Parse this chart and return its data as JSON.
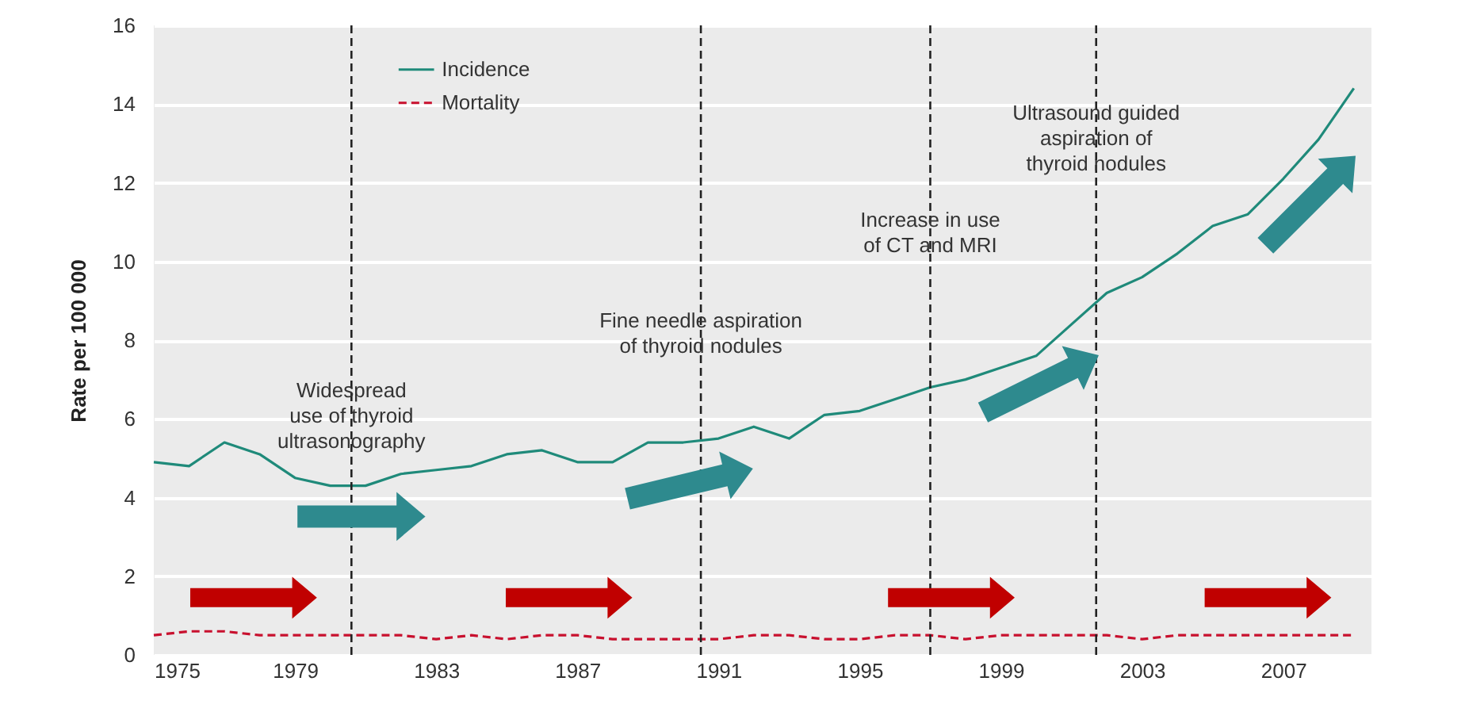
{
  "chart_data": {
    "type": "line",
    "ylabel": "Rate per 100 000",
    "x": [
      1975,
      1976,
      1977,
      1978,
      1979,
      1980,
      1981,
      1982,
      1983,
      1984,
      1985,
      1986,
      1987,
      1988,
      1989,
      1990,
      1991,
      1992,
      1993,
      1994,
      1995,
      1996,
      1997,
      1998,
      1999,
      2000,
      2001,
      2002,
      2003,
      2004,
      2005,
      2006,
      2007,
      2008,
      2009
    ],
    "series": [
      {
        "name": "Incidence",
        "color": "#1f8a7a",
        "line_style": "solid",
        "values": [
          4.9,
          4.8,
          5.4,
          5.1,
          4.5,
          4.3,
          4.3,
          4.6,
          4.7,
          4.8,
          5.1,
          5.2,
          4.9,
          4.9,
          5.4,
          5.4,
          5.5,
          5.8,
          5.5,
          6.1,
          6.2,
          6.5,
          6.8,
          7.0,
          7.3,
          7.6,
          8.4,
          9.2,
          9.6,
          10.2,
          10.9,
          11.2,
          12.1,
          13.1,
          14.4
        ]
      },
      {
        "name": "Mortality",
        "color": "#c8102e",
        "line_style": "dashed",
        "values": [
          0.5,
          0.6,
          0.6,
          0.5,
          0.5,
          0.5,
          0.5,
          0.5,
          0.4,
          0.5,
          0.4,
          0.5,
          0.5,
          0.4,
          0.4,
          0.4,
          0.4,
          0.5,
          0.5,
          0.4,
          0.4,
          0.5,
          0.5,
          0.4,
          0.5,
          0.5,
          0.5,
          0.5,
          0.4,
          0.5,
          0.5,
          0.5,
          0.5,
          0.5,
          0.5
        ]
      }
    ],
    "xlim": [
      1975,
      2009.5
    ],
    "xticks": [
      1975,
      1979,
      1983,
      1987,
      1991,
      1995,
      1999,
      2003,
      2007
    ],
    "ylim": [
      0,
      16
    ],
    "yticks": [
      0,
      2,
      4,
      6,
      8,
      10,
      12,
      14,
      16
    ],
    "grid": "y",
    "legend": "top left",
    "ref_lines": [
      {
        "axis": "x",
        "value": 1980.6,
        "label": "Widespread\nuse of thyroid\nultrasonography",
        "color": "#222222",
        "line_style": "dashed"
      },
      {
        "axis": "x",
        "value": 1990.5,
        "label": "Fine needle aspiration\nof thyroid nodules",
        "color": "#222222",
        "line_style": "dashed"
      },
      {
        "axis": "x",
        "value": 1997,
        "label": "Increase in use\nof CT and MRI",
        "color": "#222222",
        "line_style": "dashed"
      },
      {
        "axis": "x",
        "value": 2001.7,
        "label": "Ultrasound guided\naspiration of\nthyroid nodules",
        "color": "#222222",
        "line_style": "dashed"
      }
    ]
  }
}
